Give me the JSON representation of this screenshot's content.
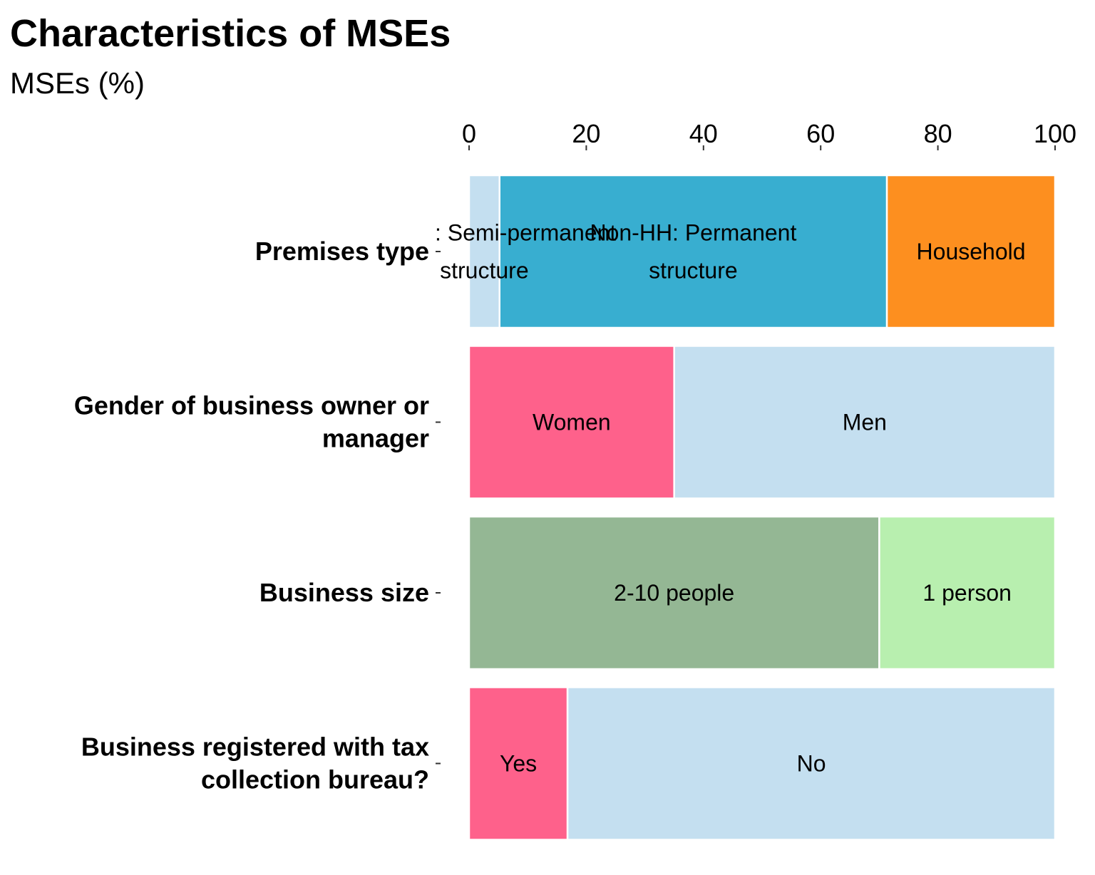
{
  "title": "Characteristics of MSEs",
  "subtitle": "MSEs (%)",
  "chart_data": {
    "type": "bar",
    "orientation": "horizontal",
    "stacked": true,
    "title": "Characteristics of MSEs",
    "subtitle": "MSEs (%)",
    "xlim": [
      0,
      100
    ],
    "x_ticks": [
      0,
      20,
      40,
      60,
      80,
      100
    ],
    "x_axis_position": "top",
    "grid": false,
    "legend": "none",
    "rows": [
      {
        "category": "Premises type",
        "segments": [
          {
            "label": "Non-HH: Semi-permanent structure",
            "value": 5.2,
            "color": "#c4dff0"
          },
          {
            "label": "Non-HH: Permanent structure",
            "value": 66.1,
            "color": "#38aed0"
          },
          {
            "label": "Household",
            "value": 28.7,
            "color": "#fd8f1f"
          }
        ]
      },
      {
        "category": "Gender of business owner or manager",
        "segments": [
          {
            "label": "Women",
            "value": 35.0,
            "color": "#fe618b"
          },
          {
            "label": "Men",
            "value": 65.0,
            "color": "#c4dff0"
          }
        ]
      },
      {
        "category": "Business size",
        "segments": [
          {
            "label": "2-10 people",
            "value": 70.0,
            "color": "#94b794"
          },
          {
            "label": "1 person",
            "value": 30.0,
            "color": "#b8efaf"
          }
        ]
      },
      {
        "category": "Business registered with tax collection bureau?",
        "segments": [
          {
            "label": "Yes",
            "value": 16.8,
            "color": "#fe618b"
          },
          {
            "label": "No",
            "value": 83.2,
            "color": "#c4dff0"
          }
        ]
      }
    ]
  }
}
